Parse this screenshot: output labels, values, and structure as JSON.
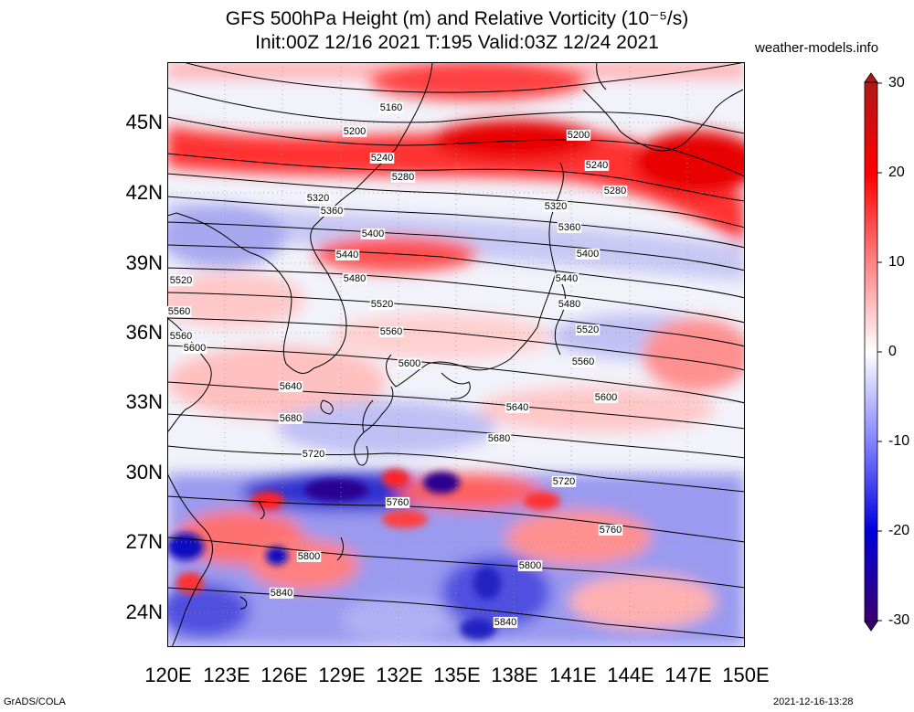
{
  "title_line1": "GFS 500hPa Height (m) and Relative Vorticity (10⁻⁵/s)",
  "title_line2": "Init:00Z 12/16 2021 T:195 Valid:03Z 12/24 2021",
  "site": "weather-models.info",
  "footer_left": "GrADS/COLA",
  "footer_right": "2021-12-16-13:28",
  "lat_labels": [
    "45N",
    "42N",
    "39N",
    "36N",
    "33N",
    "30N",
    "27N",
    "24N"
  ],
  "lon_labels": [
    "120E",
    "123E",
    "126E",
    "129E",
    "132E",
    "135E",
    "138E",
    "141E",
    "144E",
    "147E",
    "150E"
  ],
  "colorbar": {
    "ticks": [
      "30",
      "20",
      "10",
      "0",
      "-10",
      "-20",
      "-30"
    ],
    "colors": [
      "#b01818",
      "#ff0000",
      "#ff8080",
      "#ffffff",
      "#8080ff",
      "#0000dd",
      "#3a0070"
    ]
  },
  "contours": {
    "labels": [
      "5160",
      "5200",
      "5240",
      "5280",
      "5320",
      "5360",
      "5400",
      "5440",
      "5480",
      "5520",
      "5560",
      "5600",
      "5640",
      "5680",
      "5720",
      "5760",
      "5800",
      "5840"
    ],
    "placed": [
      {
        "v": "5160"
      },
      {
        "v": "5200"
      },
      {
        "v": "5200"
      },
      {
        "v": "5240"
      },
      {
        "v": "5240"
      },
      {
        "v": "5280"
      },
      {
        "v": "5280"
      },
      {
        "v": "5320"
      },
      {
        "v": "5320"
      },
      {
        "v": "5360"
      },
      {
        "v": "5360"
      },
      {
        "v": "5400"
      },
      {
        "v": "5400"
      },
      {
        "v": "5440"
      },
      {
        "v": "5440"
      },
      {
        "v": "5480"
      },
      {
        "v": "5480"
      },
      {
        "v": "5520"
      },
      {
        "v": "5520"
      },
      {
        "v": "5520"
      },
      {
        "v": "5560"
      },
      {
        "v": "5560"
      },
      {
        "v": "5560"
      },
      {
        "v": "5560"
      },
      {
        "v": "5600"
      },
      {
        "v": "5600"
      },
      {
        "v": "5600"
      },
      {
        "v": "5640"
      },
      {
        "v": "5640"
      },
      {
        "v": "5680"
      },
      {
        "v": "5680"
      },
      {
        "v": "5720"
      },
      {
        "v": "5720"
      },
      {
        "v": "5760"
      },
      {
        "v": "5760"
      },
      {
        "v": "5800"
      },
      {
        "v": "5800"
      },
      {
        "v": "5840"
      },
      {
        "v": "5840"
      }
    ]
  }
}
